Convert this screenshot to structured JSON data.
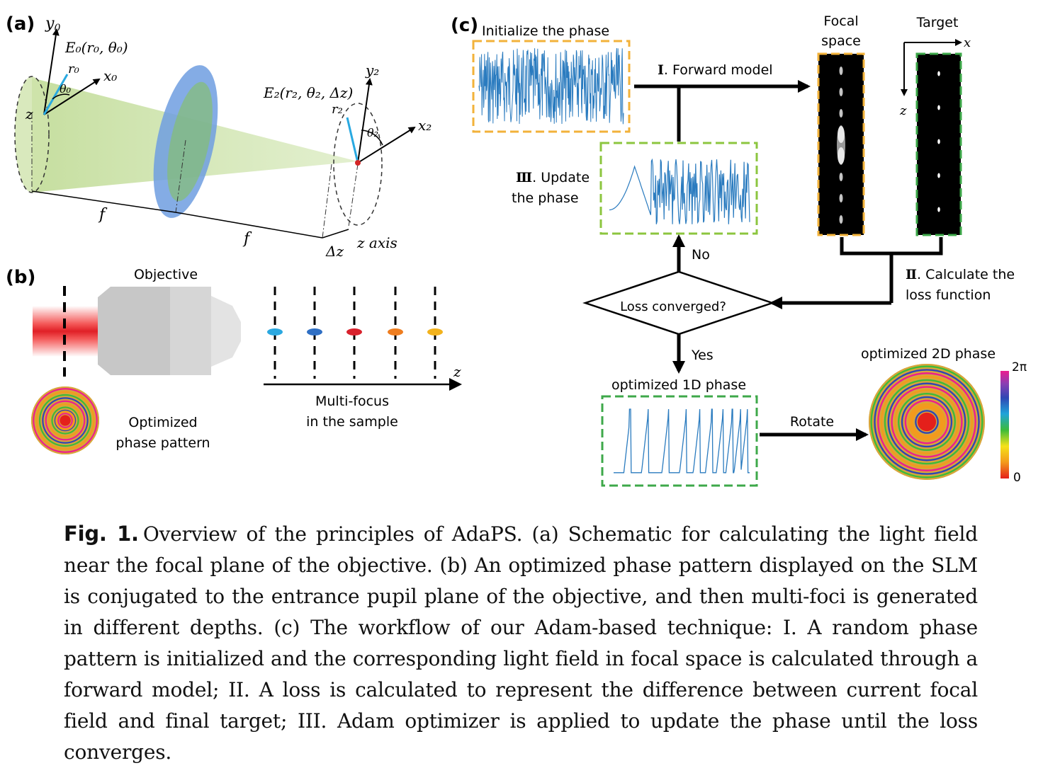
{
  "panels": {
    "a": {
      "label": "(a)",
      "y0": "y",
      "y0_sub": "0",
      "E0": "E₀(r₀, θ₀)",
      "r0": "r₀",
      "theta0": "θ₀",
      "x0": "x₀",
      "z": "z",
      "y2": "y₂",
      "E2": "E₂(r₂, θ₂, Δz)",
      "r2": "r₂",
      "theta2": "θ₂",
      "x2": "x₂",
      "f1": "f",
      "f2": "f",
      "dz": "Δz",
      "zaxis": "z axis"
    },
    "b": {
      "label": "(b)",
      "objective": "Objective",
      "optimized_line1": "Optimized",
      "optimized_line2": "phase pattern",
      "z": "z",
      "multifocus_line1": "Multi-focus",
      "multifocus_line2": "in the sample",
      "foci_colors": [
        "#2ba8e0",
        "#2f6fc4",
        "#d8212c",
        "#ee7d1f",
        "#f2b21c"
      ]
    },
    "c": {
      "label": "(c)",
      "init_phase": "Initialize the phase",
      "focal_line1": "Focal",
      "focal_line2": "space",
      "target": "Target",
      "x": "x",
      "z": "z",
      "forward_num": "Ⅰ",
      "forward": ". Forward model",
      "update_num": "Ⅲ",
      "update_line1": ". Update",
      "update_line2": "the phase",
      "no": "No",
      "loss_num": "Ⅱ",
      "loss_line1": ". Calculate the",
      "loss_line2": "loss function",
      "converged": "Loss converged?",
      "yes": "Yes",
      "opt1d": "optimized 1D phase",
      "rotate": "Rotate",
      "opt2d": "optimized 2D phase",
      "cbar_top": "2π",
      "cbar_bottom": "0",
      "colors": {
        "yellow_box": "#f2b23a",
        "green_box": "#3ea84a",
        "lightgreen_box": "#8cc63f",
        "plot_line": "#2a7bbf"
      }
    }
  },
  "caption": {
    "fignum": "Fig. 1.",
    "text": "Overview of the principles of AdaPS. (a) Schematic for calculating the light field near the focal plane of the objective. (b) An optimized phase pattern displayed on the SLM is conjugated to the entrance pupil plane of the objective, and then multi-foci is generated in different depths. (c) The workflow of our Adam-based technique: I. A random phase pattern is initialized and the corresponding light field in focal space is calculated through a forward model; II. A loss is calculated to represent the difference between current focal field and final target; III. Adam optimizer is applied to update the phase until the loss converges."
  }
}
